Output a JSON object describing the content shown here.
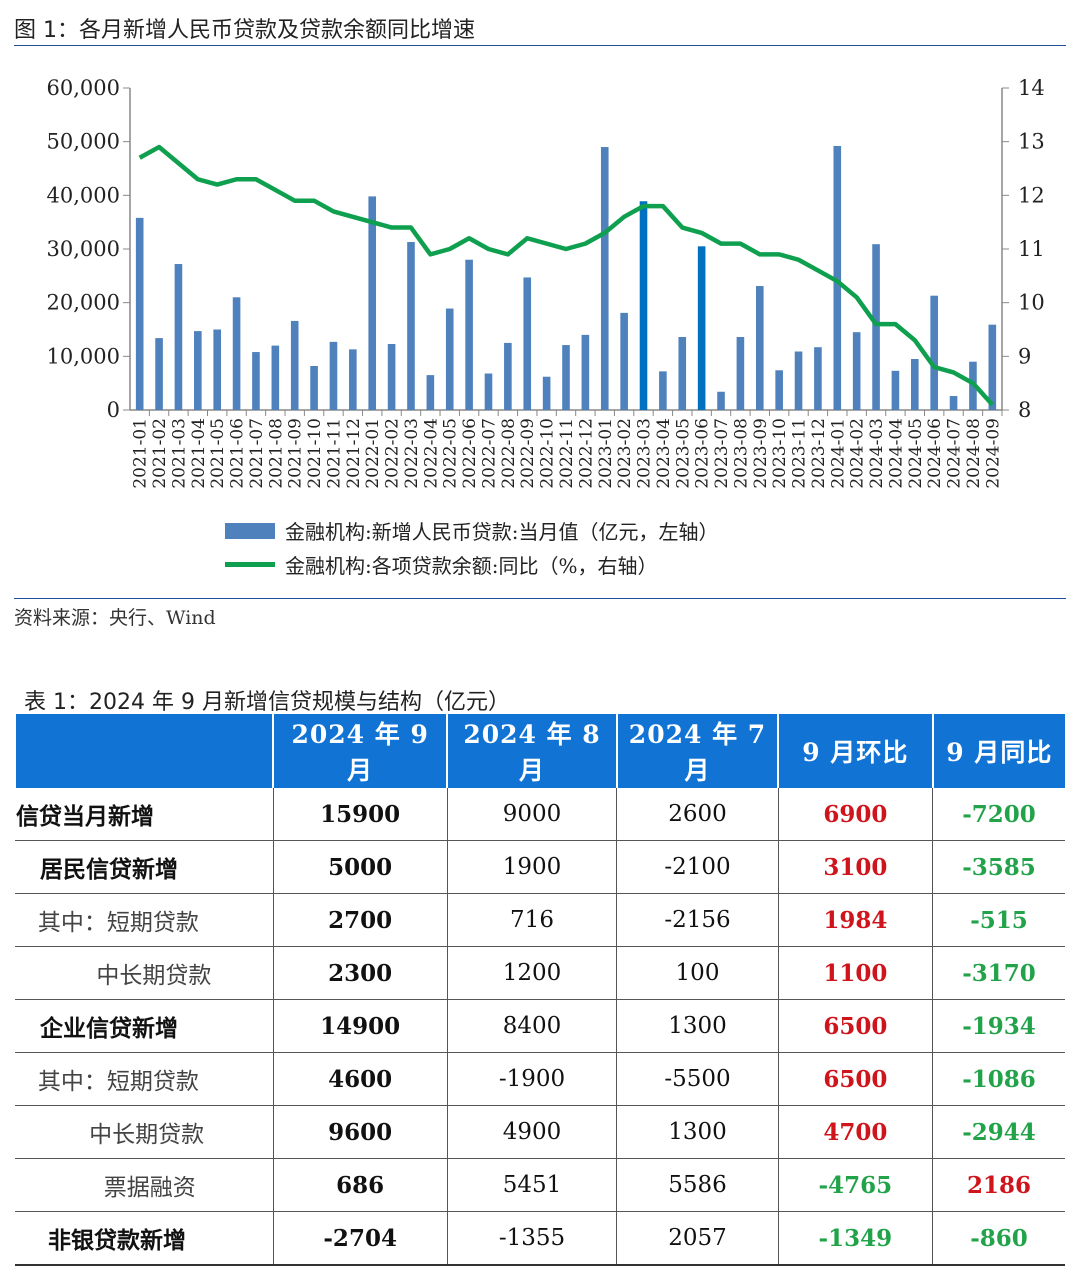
{
  "figure_title": "图 1：各月新增人民币贷款及贷款余额同比增速",
  "source": "资料来源：央行、Wind",
  "chart_data": {
    "type": "bar+line",
    "categories": [
      "2021-01",
      "2021-02",
      "2021-03",
      "2021-04",
      "2021-05",
      "2021-06",
      "2021-07",
      "2021-08",
      "2021-09",
      "2021-10",
      "2021-11",
      "2021-12",
      "2022-01",
      "2022-02",
      "2022-03",
      "2022-04",
      "2022-05",
      "2022-06",
      "2022-07",
      "2022-08",
      "2022-09",
      "2022-10",
      "2022-11",
      "2022-12",
      "2023-01",
      "2023-02",
      "2023-03",
      "2023-04",
      "2023-05",
      "2023-06",
      "2023-07",
      "2023-08",
      "2023-09",
      "2023-10",
      "2023-11",
      "2023-12",
      "2024-01",
      "2024-02",
      "2024-03",
      "2024-04",
      "2024-05",
      "2024-06",
      "2024-07",
      "2024-08",
      "2024-09"
    ],
    "series": [
      {
        "name": "金融机构:新增人民币贷款:当月值（亿元，左轴）",
        "type": "bar",
        "axis": "left",
        "color": "#4f81bd",
        "highlight_color": "#0070c0",
        "highlight": [
          "2023-03",
          "2023-06"
        ],
        "values": [
          35800,
          13400,
          27200,
          14700,
          15000,
          21000,
          10800,
          12000,
          16600,
          8200,
          12700,
          11300,
          39800,
          12300,
          31300,
          6500,
          18900,
          28000,
          6800,
          12500,
          24700,
          6200,
          12100,
          14000,
          49000,
          18100,
          38900,
          7200,
          13600,
          30500,
          3400,
          13600,
          23100,
          7400,
          10900,
          11700,
          49200,
          14500,
          30900,
          7300,
          9500,
          21300,
          2600,
          9000,
          15900
        ]
      },
      {
        "name": "金融机构:各项贷款余额:同比（%，右轴）",
        "type": "line",
        "axis": "right",
        "color": "#0fa04f",
        "values": [
          12.7,
          12.9,
          12.6,
          12.3,
          12.2,
          12.3,
          12.3,
          12.1,
          11.9,
          11.9,
          11.7,
          11.6,
          11.5,
          11.4,
          11.4,
          10.9,
          11.0,
          11.2,
          11.0,
          10.9,
          11.2,
          11.1,
          11.0,
          11.1,
          11.3,
          11.6,
          11.8,
          11.8,
          11.4,
          11.3,
          11.1,
          11.1,
          10.9,
          10.9,
          10.8,
          10.6,
          10.4,
          10.1,
          9.6,
          9.6,
          9.3,
          8.8,
          8.7,
          8.5,
          8.1
        ]
      }
    ],
    "left_axis": {
      "range": [
        0,
        60000
      ],
      "ticks": [
        "0",
        "10,000",
        "20,000",
        "30,000",
        "40,000",
        "50,000",
        "60,000"
      ]
    },
    "right_axis": {
      "range": [
        8,
        14
      ],
      "ticks": [
        "8",
        "9",
        "10",
        "11",
        "12",
        "13",
        "14"
      ]
    },
    "legend_position": "bottom"
  },
  "table": {
    "title": "表 1：2024 年 9 月新增信贷规模与结构（亿元）",
    "headers": [
      "",
      "2024 年 9 月",
      "2024 年 8 月",
      "2024 年 7 月",
      "9 月环比",
      "9 月同比"
    ],
    "rows": [
      {
        "label": "信贷当月新增",
        "indent": 0,
        "bold": true,
        "cells": [
          "15900",
          "9000",
          "2600",
          "6900",
          "-7200"
        ],
        "colors": [
          "",
          "",
          "",
          "red",
          "green"
        ]
      },
      {
        "label": "   居民信贷新增",
        "indent": 1,
        "bold": true,
        "cells": [
          "5000",
          "1900",
          "-2100",
          "3100",
          "-3585"
        ],
        "colors": [
          "",
          "",
          "",
          "red",
          "green"
        ]
      },
      {
        "label": "   其中：短期贷款",
        "indent": 1,
        "bold": false,
        "cells": [
          "2700",
          "716",
          "-2156",
          "1984",
          "-515"
        ],
        "colors": [
          "",
          "",
          "",
          "red",
          "green"
        ]
      },
      {
        "label": "           中长期贷款",
        "indent": 2,
        "bold": false,
        "cells": [
          "2300",
          "1200",
          "100",
          "1100",
          "-3170"
        ],
        "colors": [
          "",
          "",
          "",
          "red",
          "green"
        ]
      },
      {
        "label": "   企业信贷新增",
        "indent": 1,
        "bold": true,
        "cells": [
          "14900",
          "8400",
          "1300",
          "6500",
          "-1934"
        ],
        "colors": [
          "",
          "",
          "",
          "red",
          "green"
        ]
      },
      {
        "label": "   其中：短期贷款",
        "indent": 1,
        "bold": false,
        "cells": [
          "4600",
          "-1900",
          "-5500",
          "6500",
          "-1086"
        ],
        "colors": [
          "",
          "",
          "",
          "red",
          "green"
        ]
      },
      {
        "label": "          中长期贷款",
        "indent": 2,
        "bold": false,
        "cells": [
          "9600",
          "4900",
          "1300",
          "4700",
          "-2944"
        ],
        "colors": [
          "",
          "",
          "",
          "red",
          "green"
        ]
      },
      {
        "label": "            票据融资",
        "indent": 2,
        "bold": false,
        "cells": [
          "686",
          "5451",
          "5586",
          "-4765",
          "2186"
        ],
        "colors": [
          "",
          "",
          "",
          "green",
          "red"
        ]
      },
      {
        "label": "    非银贷款新增",
        "indent": 1,
        "bold": true,
        "cells": [
          "-2704",
          "-1355",
          "2057",
          "-1349",
          "-860"
        ],
        "colors": [
          "",
          "",
          "",
          "green",
          "green"
        ]
      }
    ]
  }
}
